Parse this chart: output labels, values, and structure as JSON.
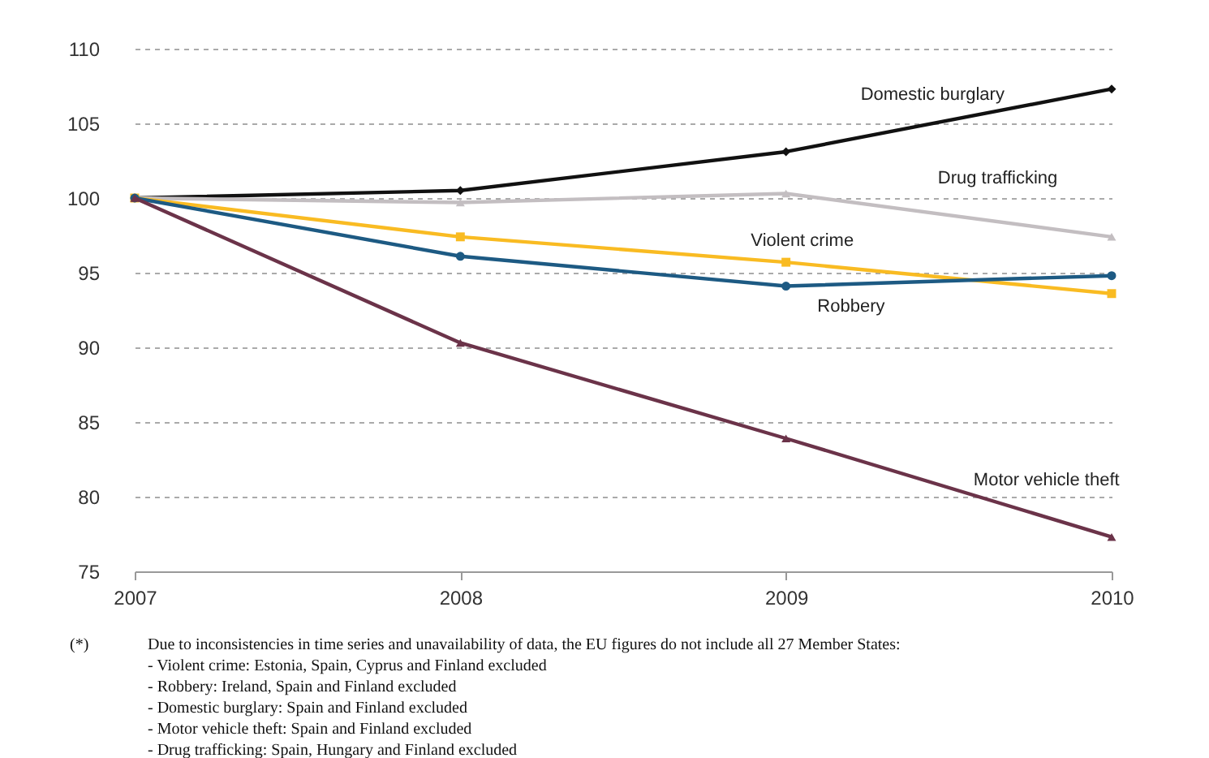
{
  "chart_data": {
    "type": "line",
    "x": [
      2007,
      2008,
      2009,
      2010
    ],
    "xlim": [
      2007,
      2010
    ],
    "xticks": [
      2007,
      2008,
      2009,
      2010
    ],
    "ylim": [
      75,
      110
    ],
    "yticks": [
      75,
      80,
      85,
      90,
      95,
      100,
      105,
      110
    ],
    "grid": "y",
    "line_style": "solid",
    "series": [
      {
        "name": "Domestic burglary",
        "color": "#111111",
        "marker": "diamond",
        "values": [
          100,
          100.5,
          103.1,
          107.3
        ]
      },
      {
        "name": "Drug trafficking",
        "color": "#c3bec1",
        "marker": "triangle",
        "values": [
          100,
          99.7,
          100.3,
          97.4
        ]
      },
      {
        "name": "Violent crime",
        "color": "#f9bb22",
        "marker": "square",
        "values": [
          100,
          97.4,
          95.7,
          93.6
        ]
      },
      {
        "name": "Robbery",
        "color": "#1d5a83",
        "marker": "circle",
        "values": [
          100,
          96.1,
          94.1,
          94.8
        ]
      },
      {
        "name": "Motor vehicle theft",
        "color": "#6b3349",
        "marker": "triangle",
        "values": [
          100,
          90.3,
          83.9,
          77.3
        ]
      }
    ],
    "annotations": [
      "(*)",
      "Due to inconsistencies in time series and unavailability of data, the EU figures do not include all 27 Member States:",
      "- Violent crime: Estonia, Spain, Cyprus and Finland excluded",
      "- Robbery: Ireland, Spain and Finland excluded",
      "- Domestic burglary: Spain and Finland excluded",
      "- Motor vehicle theft: Spain and Finland excluded",
      "- Drug trafficking: Spain, Hungary and Finland excluded"
    ]
  }
}
